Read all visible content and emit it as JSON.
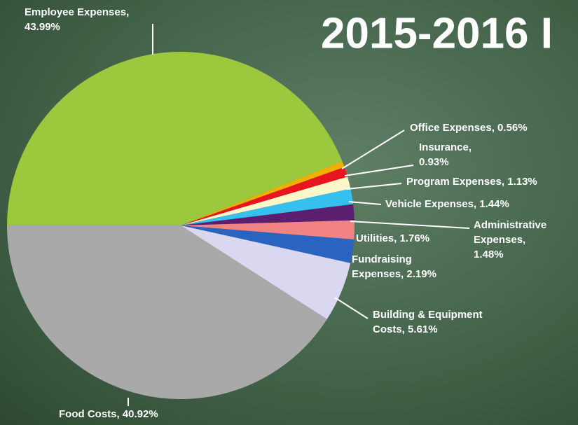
{
  "chart_data": {
    "type": "pie",
    "title": "2015-2016 I",
    "values": [
      43.99,
      0.56,
      0.93,
      1.13,
      1.44,
      1.48,
      1.76,
      2.19,
      5.61,
      40.92
    ],
    "labels": [
      [
        "Employee Expenses,",
        "43.99%"
      ],
      [
        "Office Expenses, 0.56%"
      ],
      [
        "Insurance,",
        "0.93%"
      ],
      [
        "Program Expenses, 1.13%"
      ],
      [
        "Vehicle Expenses, 1.44%"
      ],
      [
        "Administrative",
        "Expenses,",
        "1.48%"
      ],
      [
        "Utilities, 1.76%"
      ],
      [
        "Fundraising",
        "Expenses, 2.19%"
      ],
      [
        "Building & Equipment",
        "Costs, 5.61%"
      ],
      [
        "Food Costs, 40.92%"
      ]
    ],
    "colors": [
      "#9bc83d",
      "#f0b000",
      "#e8141e",
      "#fdf6c8",
      "#35c0ee",
      "#5c1f70",
      "#f38282",
      "#2b64c0",
      "#d9d8f0",
      "#a9a9a9"
    ]
  }
}
